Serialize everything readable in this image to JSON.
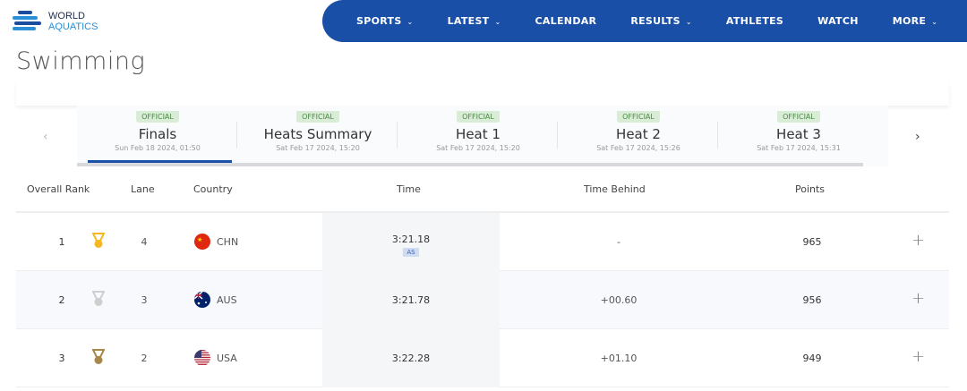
{
  "logo": {
    "line1": "WORLD",
    "line2": "AQUATICS"
  },
  "nav": [
    {
      "label": "SPORTS",
      "dropdown": true
    },
    {
      "label": "LATEST",
      "dropdown": true
    },
    {
      "label": "CALENDAR",
      "dropdown": false
    },
    {
      "label": "RESULTS",
      "dropdown": true
    },
    {
      "label": "ATHLETES",
      "dropdown": false
    },
    {
      "label": "WATCH",
      "dropdown": false
    },
    {
      "label": "MORE",
      "dropdown": true
    }
  ],
  "page_title": "Swimming",
  "tabs": [
    {
      "badge": "OFFICIAL",
      "name": "Finals",
      "date": "Sun Feb 18 2024, 01:50",
      "active": true
    },
    {
      "badge": "OFFICIAL",
      "name": "Heats Summary",
      "date": "Sat Feb 17 2024, 15:20"
    },
    {
      "badge": "OFFICIAL",
      "name": "Heat 1",
      "date": "Sat Feb 17 2024, 15:20"
    },
    {
      "badge": "OFFICIAL",
      "name": "Heat 2",
      "date": "Sat Feb 17 2024, 15:26"
    },
    {
      "badge": "OFFICIAL",
      "name": "Heat 3",
      "date": "Sat Feb 17 2024, 15:31"
    }
  ],
  "table": {
    "headers": {
      "rank": "Overall Rank",
      "lane": "Lane",
      "country": "Country",
      "time": "Time",
      "behind": "Time Behind",
      "points": "Points"
    },
    "rows": [
      {
        "rank": "1",
        "medal": "gold",
        "lane": "4",
        "country": "CHN",
        "time": "3:21.18",
        "record": "AS",
        "behind": "-",
        "points": "965"
      },
      {
        "rank": "2",
        "medal": "silver",
        "lane": "3",
        "country": "AUS",
        "time": "3:21.78",
        "behind": "+00.60",
        "points": "956"
      },
      {
        "rank": "3",
        "medal": "bronze",
        "lane": "2",
        "country": "USA",
        "time": "3:22.28",
        "behind": "+01.10",
        "points": "949"
      }
    ]
  },
  "colors": {
    "brand": "#1a4fa8",
    "gold": "#f5b820",
    "silver": "#cfcfcf",
    "bronze": "#a8884a",
    "official_badge": "#d9ecd5"
  }
}
